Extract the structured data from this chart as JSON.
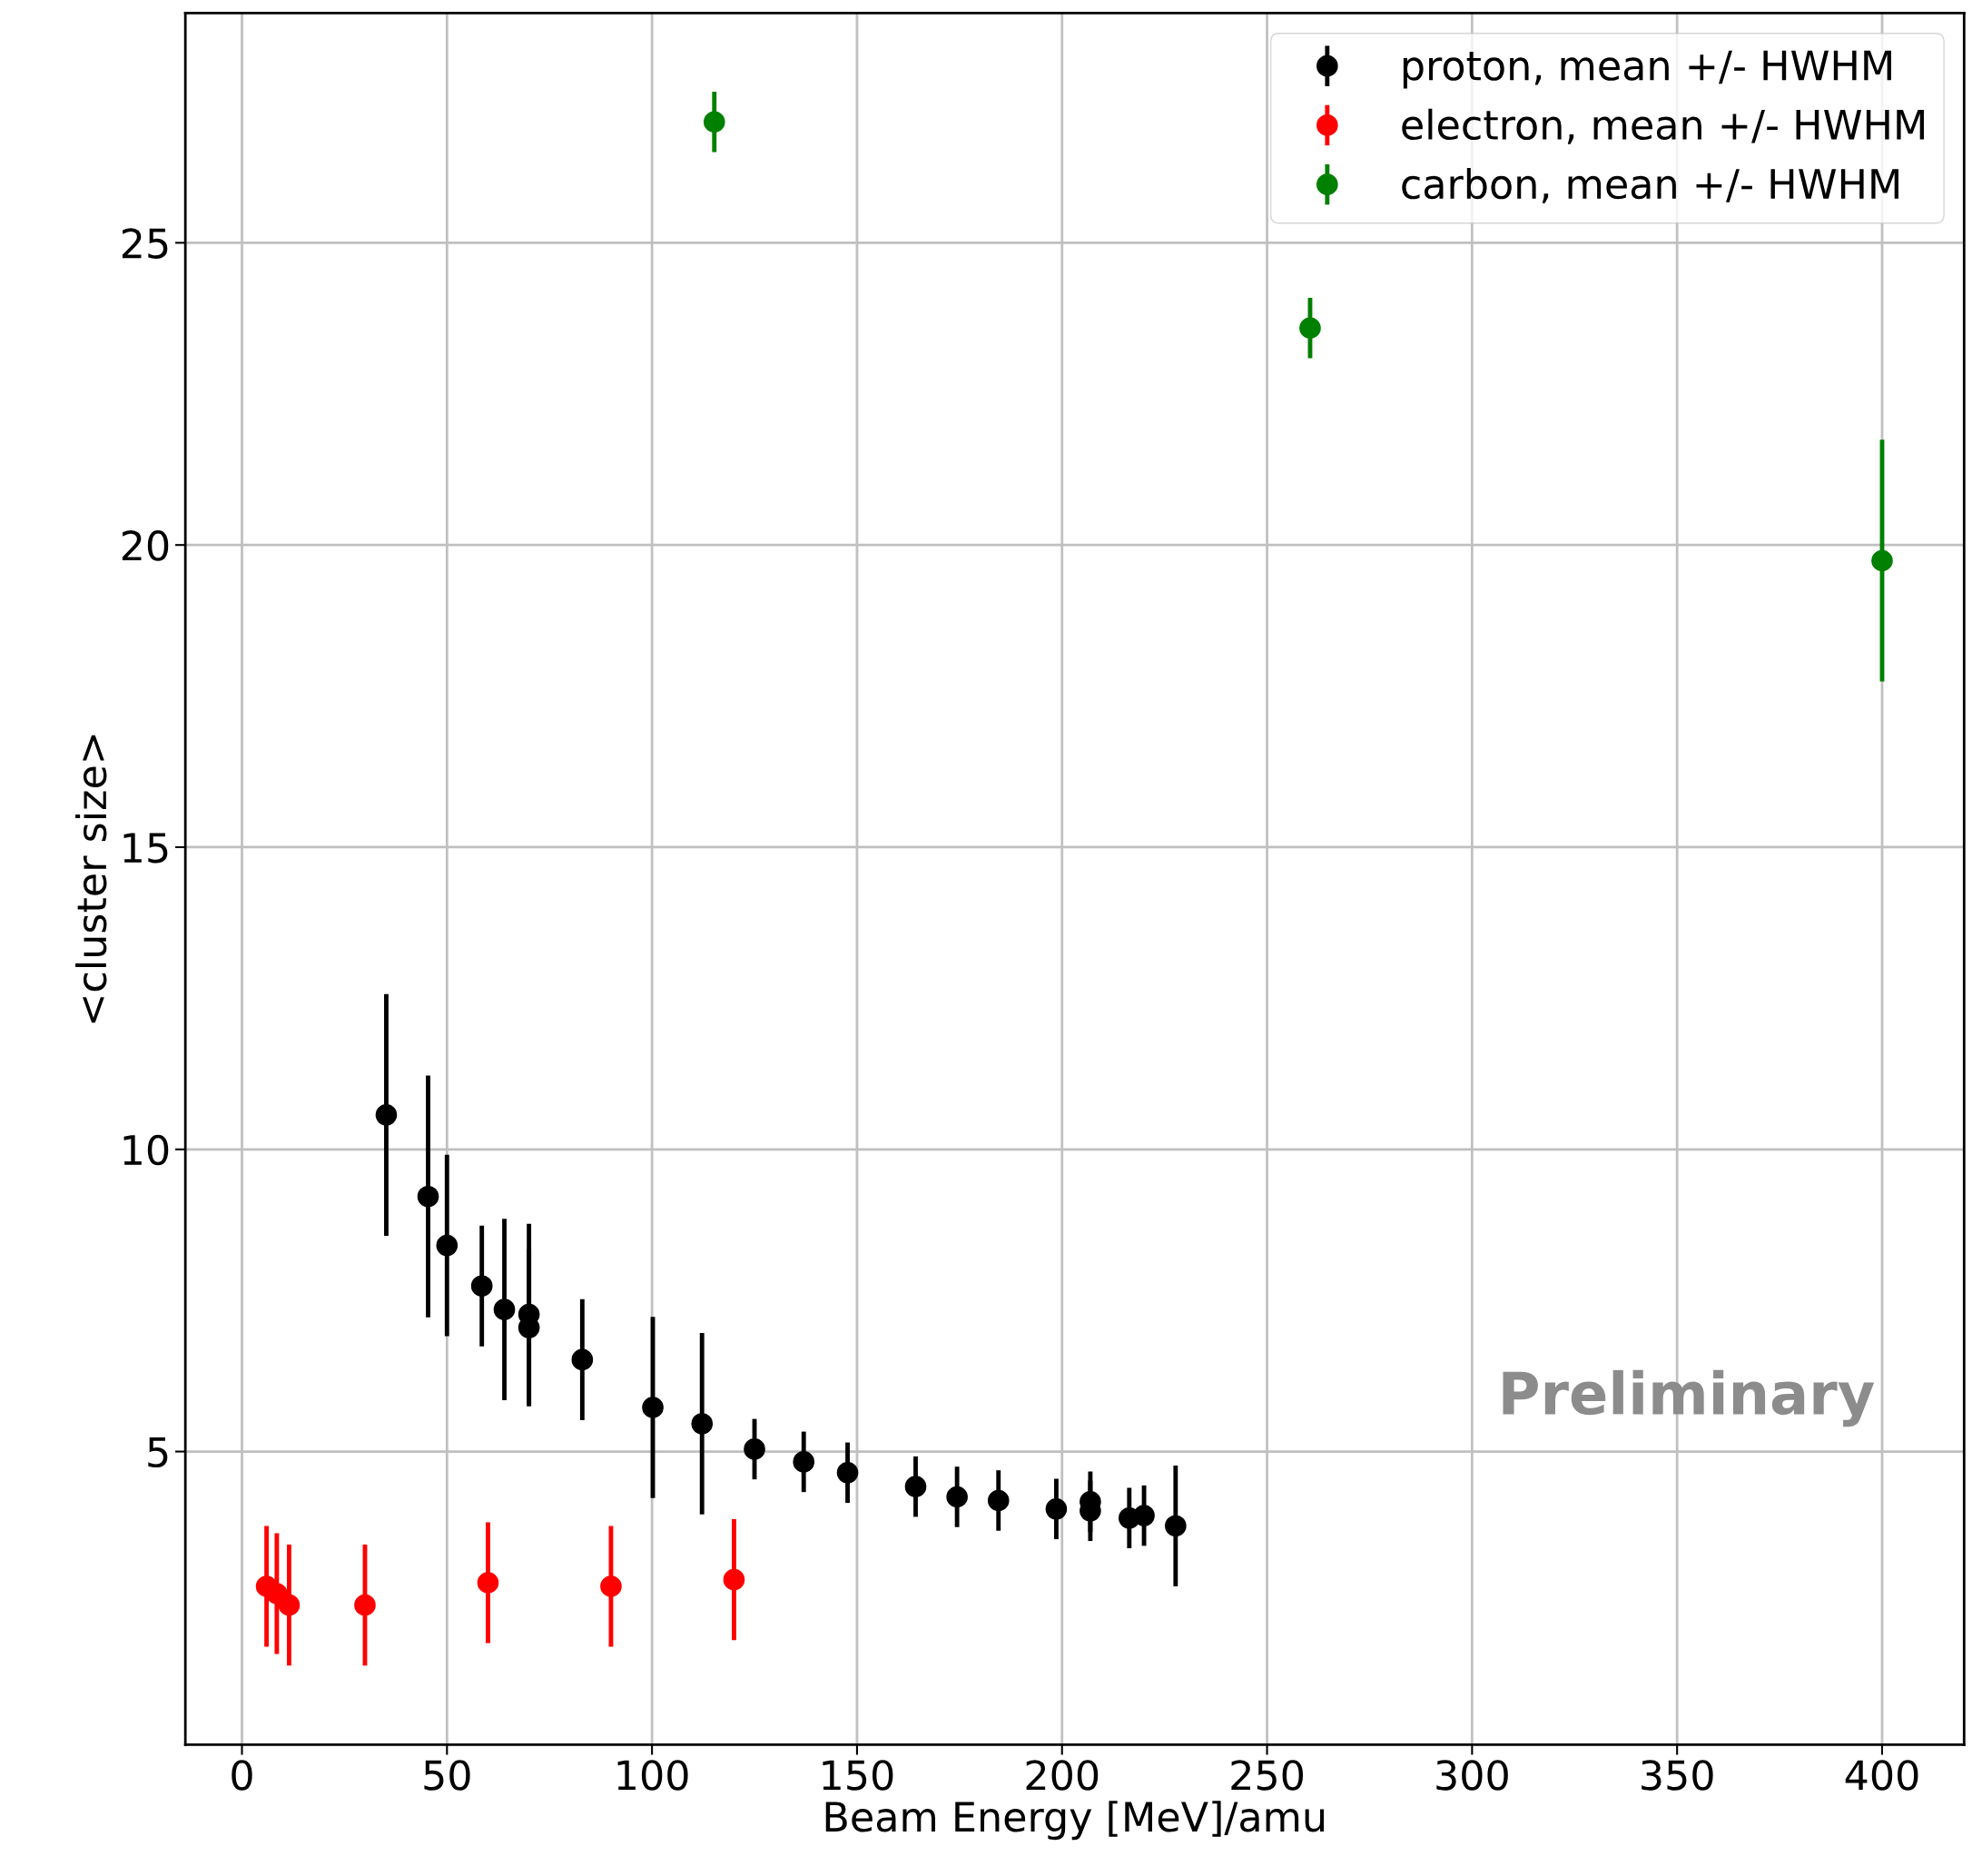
{
  "chart_data": {
    "type": "scatter",
    "xlabel": "Beam Energy [MeV]/amu",
    "ylabel": "<cluster size>",
    "xlim": [
      -13.8,
      420
    ],
    "ylim": [
      0.15,
      28.8
    ],
    "xticks": [
      0,
      50,
      100,
      150,
      200,
      250,
      300,
      350,
      400
    ],
    "yticks": [
      5,
      10,
      15,
      20,
      25
    ],
    "grid": true,
    "legend": "top right",
    "marker": "circle",
    "annotations": [
      "Preliminary"
    ],
    "series": [
      {
        "name": "proton, mean +/- HWHM",
        "color": "#000000",
        "x": [
          35.2,
          45.4,
          50,
          58.5,
          64,
          70,
          70,
          83,
          100.2,
          112.2,
          125,
          137,
          147.7,
          164.3,
          174.4,
          184.5,
          198.6,
          206.9,
          206.9,
          216.4,
          220,
          227.7
        ],
        "values": [
          10.57,
          9.22,
          8.41,
          7.74,
          7.35,
          7.27,
          7.05,
          6.52,
          5.73,
          5.46,
          5.04,
          4.83,
          4.65,
          4.42,
          4.25,
          4.19,
          4.05,
          4.17,
          4.02,
          3.9,
          3.94,
          3.77
        ],
        "errors": [
          2.0,
          2.0,
          1.5,
          1.0,
          1.5,
          1.5,
          1.3,
          1.0,
          1.5,
          1.5,
          0.5,
          0.5,
          0.5,
          0.5,
          0.5,
          0.5,
          0.5,
          0.5,
          0.5,
          0.5,
          0.5,
          1.0
        ]
      },
      {
        "name": "electron, mean +/- HWHM",
        "color": "#ff0000",
        "x": [
          6,
          8.5,
          11.5,
          30,
          60,
          90,
          120
        ],
        "values": [
          2.77,
          2.65,
          2.46,
          2.46,
          2.83,
          2.77,
          2.88
        ],
        "errors": [
          1.0,
          1.0,
          1.0,
          1.0,
          1.0,
          1.0,
          1.0
        ]
      },
      {
        "name": "carbon, mean +/- HWHM",
        "color": "#008000",
        "x": [
          115.2,
          260.5,
          400
        ],
        "values": [
          27.0,
          23.59,
          19.74
        ],
        "errors": [
          0.5,
          0.5,
          2.0
        ]
      }
    ]
  }
}
